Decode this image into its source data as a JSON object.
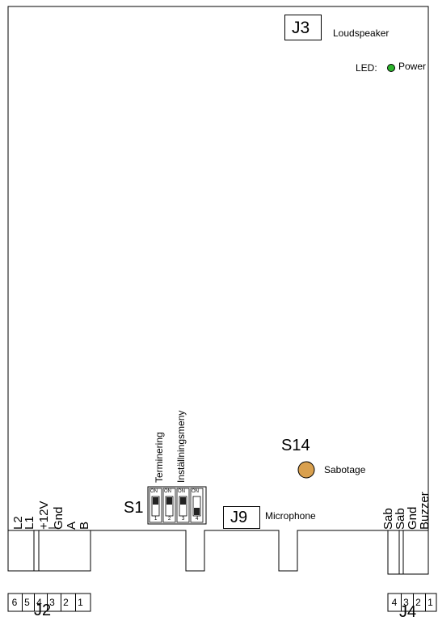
{
  "connectors": {
    "j3": {
      "label": "J3",
      "desc": "Loudspeaker"
    },
    "j9": {
      "label": "J9",
      "desc": "Microphone"
    },
    "j2": {
      "label": "J2",
      "pins": [
        "6",
        "5",
        "4",
        "3",
        "2",
        "1"
      ],
      "signals": [
        "L2",
        "L1",
        "+12V",
        "Gnd",
        "A",
        "B"
      ]
    },
    "j4": {
      "label": "J4",
      "pins": [
        "4",
        "3",
        "2",
        "1"
      ],
      "signals": [
        "Sab",
        "Sab",
        "Gnd",
        "Buzzer"
      ]
    }
  },
  "led": {
    "label": "LED:",
    "name": "Power",
    "color": "#2db52d"
  },
  "switches": {
    "s1": {
      "label": "S1",
      "on_text": "ON",
      "positions": [
        "1",
        "2",
        "3",
        "4"
      ],
      "functions": [
        "Terminering",
        "Inställningsmeny"
      ]
    },
    "s14": {
      "label": "S14",
      "desc": "Sabotage",
      "color": "#d9a04e"
    }
  }
}
